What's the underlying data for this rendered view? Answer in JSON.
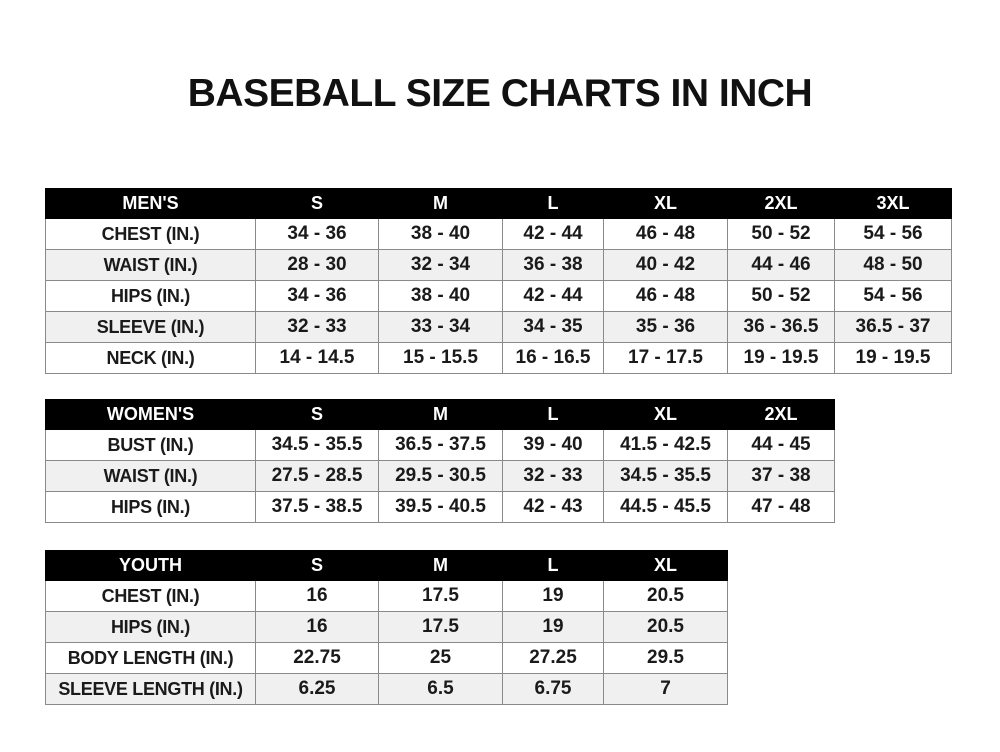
{
  "title": "BASEBALL SIZE CHARTS IN INCH",
  "tables": [
    {
      "id": "mens",
      "header": [
        "MEN'S",
        "S",
        "M",
        "L",
        "XL",
        "2XL",
        "3XL"
      ],
      "rows": [
        [
          "CHEST (IN.)",
          "34 - 36",
          "38 - 40",
          "42 - 44",
          "46 - 48",
          "50 - 52",
          "54 - 56"
        ],
        [
          "WAIST (IN.)",
          "28 - 30",
          "32 - 34",
          "36 - 38",
          "40 - 42",
          "44 - 46",
          "48 - 50"
        ],
        [
          "HIPS (IN.)",
          "34 - 36",
          "38 - 40",
          "42 - 44",
          "46 - 48",
          "50 - 52",
          "54 - 56"
        ],
        [
          "SLEEVE (IN.)",
          "32 - 33",
          "33 - 34",
          "34 - 35",
          "35 - 36",
          "36 - 36.5",
          "36.5 - 37"
        ],
        [
          "NECK (IN.)",
          "14 - 14.5",
          "15 - 15.5",
          "16 - 16.5",
          "17 - 17.5",
          "19 - 19.5",
          "19 - 19.5"
        ]
      ]
    },
    {
      "id": "womens",
      "header": [
        "WOMEN'S",
        "S",
        "M",
        "L",
        "XL",
        "2XL"
      ],
      "rows": [
        [
          "BUST (IN.)",
          "34.5 - 35.5",
          "36.5 - 37.5",
          "39 - 40",
          "41.5 - 42.5",
          "44 - 45"
        ],
        [
          "WAIST (IN.)",
          "27.5 - 28.5",
          "29.5 - 30.5",
          "32 - 33",
          "34.5 - 35.5",
          "37 - 38"
        ],
        [
          "HIPS (IN.)",
          "37.5 - 38.5",
          "39.5 - 40.5",
          "42 - 43",
          "44.5 - 45.5",
          "47 - 48"
        ]
      ]
    },
    {
      "id": "youth",
      "header": [
        "YOUTH",
        "S",
        "M",
        "L",
        "XL"
      ],
      "rows": [
        [
          "CHEST (IN.)",
          "16",
          "17.5",
          "19",
          "20.5"
        ],
        [
          "HIPS (IN.)",
          "16",
          "17.5",
          "19",
          "20.5"
        ],
        [
          "BODY LENGTH (IN.)",
          "22.75",
          "25",
          "27.25",
          "29.5"
        ],
        [
          "SLEEVE LENGTH (IN.)",
          "6.25",
          "6.5",
          "6.75",
          "7"
        ]
      ]
    }
  ]
}
